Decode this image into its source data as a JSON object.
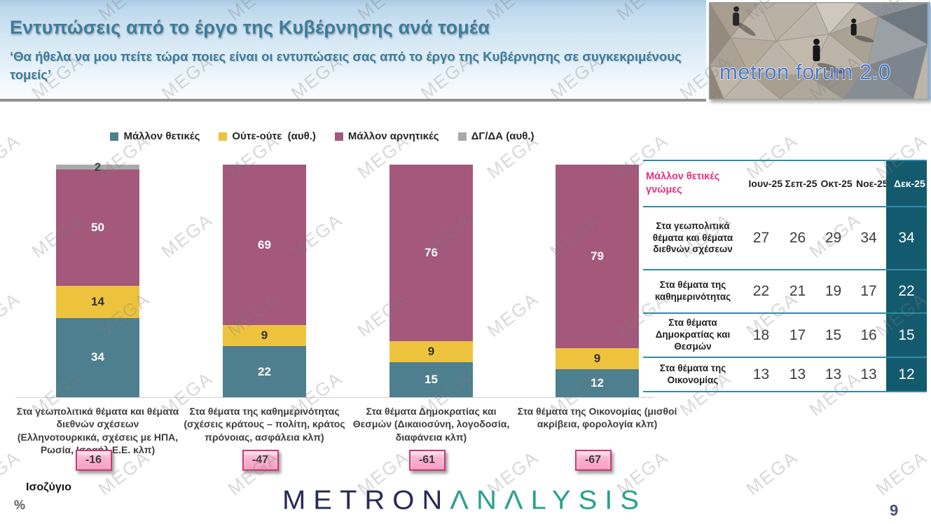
{
  "header": {
    "title": "Εντυπώσεις από το έργο της Κυβέρνησης ανά τομέα",
    "subtitle": "‘Θα ήθελα να μου πείτε τώρα ποιες είναι οι εντυπώσεις σας από το έργο της Κυβέρνησης σε συγκεκριμένους τομείς’"
  },
  "logo": {
    "text": "metron forum 2.0"
  },
  "watermark": "MEGA",
  "chart_data": {
    "type": "bar",
    "stacked": true,
    "categories": [
      "Στα γεωπολιτικά θέματα και θέματα διεθνών σχέσεων (Ελληνοτουρκικά, σχέσεις με ΗΠΑ, Ρωσία, Ισραήλ Ε.Ε. κλπ)",
      "Στα θέματα της καθημερινότητας (σχέσεις κράτους – πολίτη, κράτος πρόνοιας, ασφάλεια κλπ)",
      "Στα θέματα Δημοκρατίας και Θεσμών (Δικαιοσύνη, λογοδοσία, διαφάνεια κλπ)",
      "Στα θέματα της Οικονομίας (μισθοί ακρίβεια, φορολογία κλπ)"
    ],
    "series": [
      {
        "name": "Μάλλον θετικές",
        "color": "#4e7f8e",
        "label_color": "#ffffff",
        "values": [
          34,
          22,
          15,
          12
        ]
      },
      {
        "name": "Ούτε-ούτε  (αυθ.)",
        "color": "#edc33e",
        "label_color": "#2f2f2f",
        "values": [
          14,
          9,
          9,
          9
        ]
      },
      {
        "name": "Μάλλον αρνητικές",
        "color": "#a3587c",
        "label_color": "#ffffff",
        "values": [
          50,
          69,
          76,
          79
        ]
      },
      {
        "name": "ΔΓ/ΔΑ (αυθ.)",
        "color": "#a9a9a9",
        "label_color": "#3f3f3f",
        "values": [
          2,
          0,
          0,
          0
        ]
      }
    ],
    "ylim": [
      0,
      100
    ],
    "unit": "%",
    "balance_label": "Ισοζύγιο",
    "balances": [
      -16,
      -47,
      -61,
      -67
    ]
  },
  "table": {
    "header_label": "Μάλλον θετικές γνώμες",
    "columns": [
      "Ιουν-25",
      "Σεπ-25",
      "Οκτ-25",
      "Νοε-25",
      "Δεκ-25"
    ],
    "rows": [
      {
        "label": "Στα γεωπολιτικά θέματα και θέματα διεθνών σχέσεων",
        "values": [
          27,
          26,
          29,
          34,
          34
        ]
      },
      {
        "label": "Στα θέματα της καθημερινότητας",
        "values": [
          22,
          21,
          19,
          17,
          22
        ]
      },
      {
        "label": "Στα θέματα Δημοκρατίας και Θεσμών",
        "values": [
          18,
          17,
          15,
          16,
          15
        ]
      },
      {
        "label": "Στα θέματα της Οικονομίας",
        "values": [
          13,
          13,
          13,
          13,
          12
        ]
      }
    ]
  },
  "footer": {
    "brand_metron": "METRON",
    "brand_analysis": "ΛNΛLYSIS",
    "page_number": "9"
  }
}
